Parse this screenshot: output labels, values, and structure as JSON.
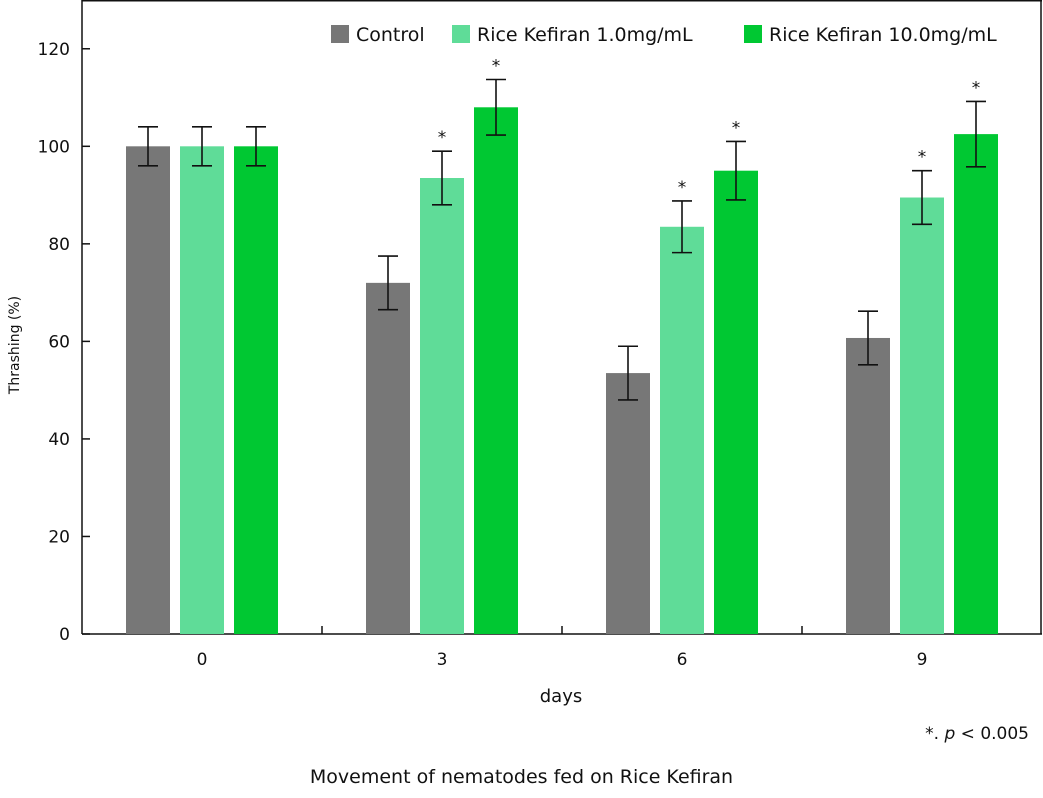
{
  "chart_data": {
    "type": "bar",
    "xlabel": "days",
    "ylabel": "Thrashing (%)",
    "categories": [
      "0",
      "3",
      "6",
      "9"
    ],
    "ylim": [
      0,
      130
    ],
    "yticks": [
      0,
      20,
      40,
      60,
      80,
      100,
      120
    ],
    "grid": false,
    "legend_position": "top-right",
    "series": [
      {
        "name": "Control",
        "color": "#777777",
        "values": [
          100,
          72,
          53.5,
          60.7
        ],
        "errors": [
          4,
          5.5,
          5.5,
          5.5
        ],
        "significant": [
          false,
          false,
          false,
          false
        ]
      },
      {
        "name": "Rice Kefiran 1.0mg/mL",
        "color": "#5fdc98",
        "values": [
          100,
          93.5,
          83.5,
          89.5
        ],
        "errors": [
          4,
          5.5,
          5.3,
          5.5
        ],
        "significant": [
          false,
          true,
          true,
          true
        ]
      },
      {
        "name": "Rice Kefiran 10.0mg/mL",
        "color": "#00c832",
        "values": [
          100,
          108,
          95,
          102.5
        ],
        "errors": [
          4,
          5.7,
          6,
          6.7
        ],
        "significant": [
          false,
          true,
          true,
          true
        ]
      }
    ],
    "significance_marker": "*"
  },
  "note": {
    "prefix": "*. ",
    "p": "p",
    "suffix": " < 0.005"
  },
  "caption": "Movement of nematodes fed on Rice Kefiran"
}
